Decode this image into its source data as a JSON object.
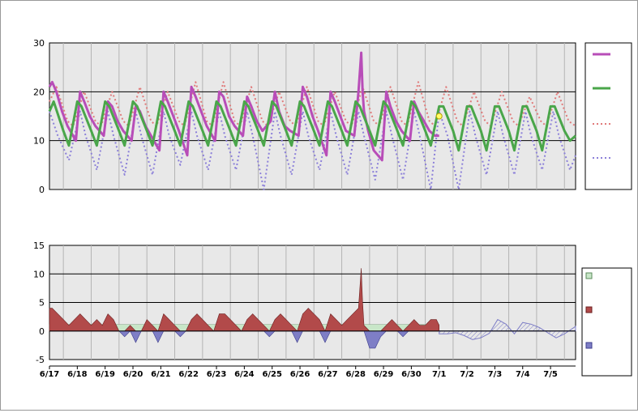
{
  "chart_data": [
    {
      "type": "line",
      "panel": "temperature",
      "ylim": [
        0,
        30
      ],
      "y_ticks": [
        "0",
        "10",
        "20",
        "30"
      ],
      "x_tick_labels": [
        "6/17",
        "6/18",
        "6/19",
        "6/20",
        "6/21",
        "6/22",
        "6/23",
        "6/24",
        "6/25",
        "6/26",
        "6/27",
        "6/28",
        "6/29",
        "6/30",
        "7/1",
        "7/2",
        "7/3",
        "7/4",
        "7/5"
      ],
      "x_days_range": [
        0,
        18.9
      ],
      "grid": "horizontal",
      "legend": "right",
      "marker": {
        "x": 14.0,
        "y": 15.0,
        "color": "#ffff66"
      },
      "series": [
        {
          "key": "observed",
          "color": "#b84db8",
          "style": "solid",
          "width": 3,
          "x": [
            0,
            0.1,
            0.25,
            0.45,
            0.65,
            0.95,
            1.1,
            1.25,
            1.45,
            1.65,
            1.95,
            2.1,
            2.25,
            2.45,
            2.65,
            2.95,
            3.1,
            3.25,
            3.45,
            3.65,
            3.95,
            4.1,
            4.25,
            4.45,
            4.65,
            4.95,
            5.1,
            5.25,
            5.45,
            5.65,
            5.95,
            6.1,
            6.25,
            6.45,
            6.65,
            6.95,
            7.1,
            7.25,
            7.45,
            7.65,
            7.95,
            8.1,
            8.25,
            8.45,
            8.65,
            8.95,
            9.1,
            9.25,
            9.45,
            9.65,
            9.95,
            10.1,
            10.25,
            10.45,
            10.65,
            10.95,
            11.1,
            11.2,
            11.25,
            11.3,
            11.45,
            11.65,
            11.95,
            12.1,
            12.25,
            12.45,
            12.65,
            12.95,
            13.1,
            13.25,
            13.45,
            13.65,
            13.85,
            14.0
          ],
          "y": [
            21,
            22,
            20,
            16,
            13,
            10,
            20,
            18,
            15,
            13,
            11,
            18,
            17,
            14,
            12,
            10,
            17,
            16,
            13,
            11,
            8,
            20,
            18,
            15,
            12,
            7,
            21,
            19,
            16,
            13,
            10,
            20,
            19,
            15,
            13,
            11,
            19,
            17,
            14,
            12,
            14,
            20,
            16,
            13,
            12,
            11,
            21,
            19,
            15,
            12,
            7,
            20,
            18,
            15,
            12,
            11,
            20,
            28,
            20,
            16,
            12,
            8,
            6,
            20,
            17,
            14,
            12,
            10,
            18,
            16,
            14,
            12,
            11,
            11
          ]
        },
        {
          "key": "forecast_temp",
          "color": "#4aa64a",
          "style": "solid",
          "width": 3,
          "x": [
            0,
            0.15,
            0.5,
            0.7,
            1.0,
            1.15,
            1.5,
            1.7,
            2.0,
            2.15,
            2.5,
            2.7,
            3.0,
            3.15,
            3.5,
            3.7,
            4.0,
            4.15,
            4.5,
            4.7,
            5.0,
            5.15,
            5.5,
            5.7,
            6.0,
            6.15,
            6.5,
            6.7,
            7.0,
            7.15,
            7.5,
            7.7,
            8.0,
            8.15,
            8.5,
            8.7,
            9.0,
            9.15,
            9.5,
            9.7,
            10.0,
            10.15,
            10.5,
            10.7,
            11.0,
            11.15,
            11.5,
            11.7,
            12.0,
            12.15,
            12.5,
            12.7,
            13.0,
            13.15,
            13.5,
            13.7,
            14.0,
            14.15,
            14.5,
            14.7,
            15.0,
            15.15,
            15.5,
            15.7,
            16.0,
            16.15,
            16.5,
            16.7,
            17.0,
            17.15,
            17.5,
            17.7,
            18.0,
            18.15,
            18.5,
            18.7,
            18.9
          ],
          "y": [
            16,
            18,
            12,
            9,
            18,
            17,
            12,
            9,
            18,
            17,
            12,
            9,
            18,
            17,
            12,
            9,
            18,
            17,
            12,
            9,
            18,
            17,
            12,
            9,
            18,
            17,
            12,
            9,
            18,
            17,
            12,
            9,
            18,
            17,
            12,
            9,
            18,
            17,
            12,
            9,
            18,
            17,
            12,
            9,
            18,
            17,
            12,
            9,
            18,
            17,
            12,
            9,
            18,
            17,
            12,
            9,
            17,
            17,
            12,
            8,
            17,
            17,
            12,
            8,
            17,
            17,
            12,
            8,
            17,
            17,
            12,
            8,
            17,
            17,
            12,
            10,
            11
          ]
        },
        {
          "key": "normal_max",
          "color": "#e07a7a",
          "style": "dotted",
          "width": 2,
          "x": [
            0,
            0.25,
            0.65,
            0.85,
            1.25,
            1.65,
            1.85,
            2.25,
            2.65,
            2.85,
            3.25,
            3.65,
            3.85,
            4.25,
            4.65,
            4.85,
            5.25,
            5.65,
            5.85,
            6.25,
            6.65,
            6.85,
            7.25,
            7.65,
            7.85,
            8.25,
            8.65,
            8.85,
            9.25,
            9.65,
            9.85,
            10.25,
            10.65,
            10.85,
            11.25,
            11.65,
            11.85,
            12.25,
            12.65,
            12.85,
            13.25,
            13.65,
            13.85,
            14.25,
            14.65,
            14.85,
            15.25,
            15.65,
            15.85,
            16.25,
            16.65,
            16.85,
            17.25,
            17.65,
            17.85,
            18.25,
            18.65,
            18.9
          ],
          "y": [
            18,
            21,
            14,
            13,
            20,
            14,
            13,
            20,
            14,
            13,
            21,
            14,
            13,
            20,
            14,
            13,
            22,
            14,
            13,
            22,
            14,
            13,
            21,
            14,
            13,
            20,
            14,
            13,
            21,
            14,
            13,
            20,
            14,
            13,
            21,
            14,
            13,
            21,
            14,
            13,
            22,
            14,
            13,
            21,
            14,
            13,
            20,
            14,
            13,
            20,
            14,
            13,
            19,
            14,
            13,
            20,
            14,
            13
          ]
        },
        {
          "key": "normal_min",
          "color": "#8c80d9",
          "style": "dotted",
          "width": 2,
          "x": [
            0,
            0.3,
            0.7,
            1.1,
            1.3,
            1.7,
            2.1,
            2.3,
            2.7,
            3.1,
            3.3,
            3.7,
            4.1,
            4.3,
            4.7,
            5.1,
            5.3,
            5.7,
            6.1,
            6.3,
            6.7,
            7.1,
            7.3,
            7.7,
            8.1,
            8.3,
            8.7,
            9.1,
            9.3,
            9.7,
            10.1,
            10.3,
            10.7,
            11.1,
            11.3,
            11.7,
            12.1,
            12.3,
            12.7,
            13.1,
            13.3,
            13.7,
            14.0,
            14.3,
            14.7,
            15.1,
            15.3,
            15.7,
            16.1,
            16.3,
            16.7,
            17.1,
            17.3,
            17.7,
            18.1,
            18.3,
            18.7,
            18.9
          ],
          "y": [
            16,
            11,
            6,
            16,
            11,
            4,
            16,
            11,
            3,
            16,
            11,
            3,
            16,
            11,
            5,
            16,
            11,
            4,
            16,
            11,
            4,
            16,
            11,
            0,
            16,
            11,
            3,
            16,
            11,
            4,
            16,
            11,
            3,
            16,
            11,
            2,
            16,
            11,
            2,
            16,
            11,
            0,
            16,
            11,
            0,
            16,
            11,
            3,
            16,
            11,
            3,
            16,
            11,
            4,
            16,
            11,
            4,
            7
          ]
        }
      ]
    },
    {
      "type": "area",
      "panel": "departure",
      "ylim": [
        -5,
        15
      ],
      "y_ticks": [
        "-5",
        "0",
        "5",
        "10",
        "15"
      ],
      "x_tick_labels": [
        "6/17",
        "6/18",
        "6/19",
        "6/20",
        "6/21",
        "6/22",
        "6/23",
        "6/24",
        "6/25",
        "6/26",
        "6/27",
        "6/28",
        "6/29",
        "6/30",
        "7/1",
        "7/2",
        "7/3",
        "7/4",
        "7/5"
      ],
      "x_days_range": [
        0,
        18.9
      ],
      "grid": "horizontal",
      "legend": "right",
      "series": [
        {
          "key": "departure",
          "positive_color": "#b24a4a",
          "negative_color": "#7e7ec6",
          "neutral_color": "#c8e6c8",
          "x": [
            0,
            0.1,
            0.3,
            0.5,
            0.7,
            0.9,
            1.1,
            1.3,
            1.5,
            1.7,
            1.9,
            2.1,
            2.3,
            2.5,
            2.7,
            2.9,
            3.1,
            3.3,
            3.5,
            3.7,
            3.9,
            4.1,
            4.3,
            4.5,
            4.7,
            4.9,
            5.1,
            5.3,
            5.5,
            5.7,
            5.9,
            6.1,
            6.3,
            6.5,
            6.7,
            6.9,
            7.1,
            7.3,
            7.5,
            7.7,
            7.9,
            8.1,
            8.3,
            8.5,
            8.7,
            8.9,
            9.1,
            9.3,
            9.5,
            9.7,
            9.9,
            10.1,
            10.3,
            10.5,
            10.7,
            10.9,
            11.1,
            11.2,
            11.25,
            11.3,
            11.5,
            11.7,
            11.9,
            12.1,
            12.3,
            12.5,
            12.7,
            12.9,
            13.1,
            13.3,
            13.5,
            13.7,
            13.9,
            14.0
          ],
          "y": [
            4,
            4,
            3,
            2,
            1,
            2,
            3,
            2,
            1,
            2,
            1,
            3,
            2,
            0,
            -1,
            1,
            -2,
            0,
            2,
            1,
            -2,
            3,
            2,
            1,
            -1,
            0,
            2,
            3,
            2,
            1,
            0,
            3,
            3,
            2,
            1,
            0,
            2,
            3,
            2,
            1,
            -1,
            2,
            3,
            2,
            1,
            -2,
            3,
            4,
            3,
            2,
            -2,
            3,
            2,
            1,
            2,
            3,
            4,
            11,
            5,
            1,
            -3,
            -3,
            -1,
            1,
            2,
            1,
            -1,
            1,
            2,
            1,
            1,
            2,
            2,
            1
          ]
        },
        {
          "key": "departure_forecast",
          "color": "#7e7ec6",
          "style": "hatched",
          "x": [
            14.0,
            14.3,
            14.6,
            14.9,
            15.2,
            15.5,
            15.8,
            16.1,
            16.4,
            16.7,
            17.0,
            17.3,
            17.6,
            17.9,
            18.2,
            18.5,
            18.9
          ],
          "y": [
            -0.5,
            -0.5,
            -0.3,
            -0.8,
            -1.5,
            -1.2,
            -0.4,
            2.0,
            1.2,
            -0.5,
            1.5,
            1.2,
            0.6,
            -0.3,
            -1.2,
            -0.5,
            0.8
          ]
        }
      ]
    }
  ]
}
